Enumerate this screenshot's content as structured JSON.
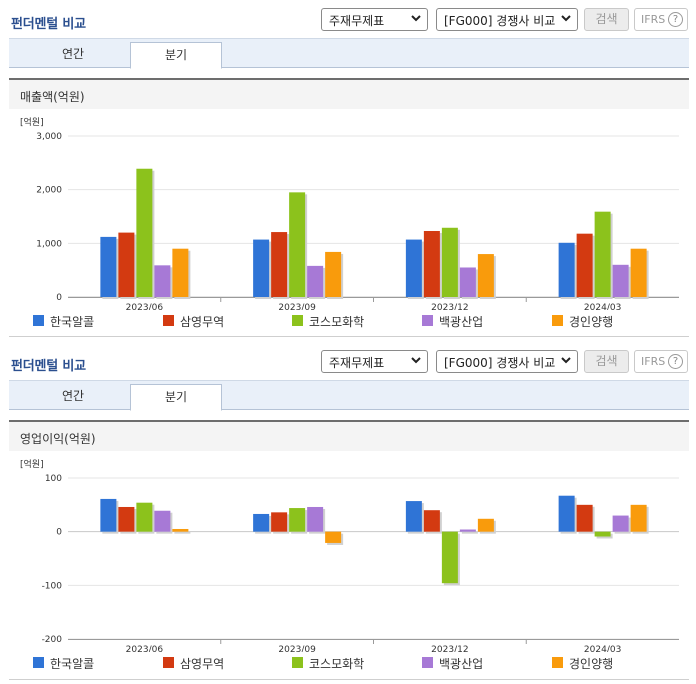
{
  "header": {
    "title": "펀더멘털 비교",
    "select_type": "주재무제표",
    "select_compare": "[FG000] 경쟁사 비교",
    "search_label": "검색",
    "ifrs_label": "IFRS",
    "help_label": "?"
  },
  "tabs": [
    {
      "label": "연간"
    },
    {
      "label": "분기"
    }
  ],
  "selected_tab": "분기",
  "colors": {
    "title": "#2b4f8f",
    "series": [
      "#2f74d6",
      "#d33a11",
      "#8cc21c",
      "#a779d6",
      "#f99b0c"
    ]
  },
  "charts": [
    {
      "metric_title": "매출액(억원)"
    },
    {
      "metric_title": "영업이익(억원)"
    }
  ],
  "chart_data": [
    {
      "type": "bar",
      "title": "매출액(억원)",
      "unit_label": "[억원]",
      "categories": [
        "2023/06",
        "2023/09",
        "2023/12",
        "2024/03"
      ],
      "ylim": [
        0,
        3000
      ],
      "yticks": [
        0,
        1000,
        2000,
        3000
      ],
      "ytick_labels": [
        "0",
        "1,000",
        "2,000",
        "3,000"
      ],
      "grid": true,
      "legend_position": "bottom",
      "series": [
        {
          "name": "한국알콜",
          "values": [
            1120,
            1070,
            1070,
            1010
          ]
        },
        {
          "name": "삼영무역",
          "values": [
            1200,
            1210,
            1230,
            1180
          ]
        },
        {
          "name": "코스모화학",
          "values": [
            2390,
            1950,
            1290,
            1590
          ]
        },
        {
          "name": "백광산업",
          "values": [
            590,
            580,
            550,
            600
          ]
        },
        {
          "name": "경인양행",
          "values": [
            900,
            840,
            800,
            900
          ]
        }
      ]
    },
    {
      "type": "bar",
      "title": "영업이익(억원)",
      "unit_label": "[억원]",
      "categories": [
        "2023/06",
        "2023/09",
        "2023/12",
        "2024/03"
      ],
      "ylim": [
        -200,
        100
      ],
      "yticks": [
        -200,
        -100,
        0,
        100
      ],
      "ytick_labels": [
        "-200",
        "-100",
        "0",
        "100"
      ],
      "grid": true,
      "legend_position": "bottom",
      "series": [
        {
          "name": "한국알콜",
          "values": [
            61,
            33,
            57,
            67
          ]
        },
        {
          "name": "삼영무역",
          "values": [
            46,
            36,
            40,
            50
          ]
        },
        {
          "name": "코스모화학",
          "values": [
            54,
            44,
            -96,
            -9
          ]
        },
        {
          "name": "백광산업",
          "values": [
            39,
            46,
            4,
            30
          ]
        },
        {
          "name": "경인양행",
          "values": [
            5,
            -21,
            24,
            50
          ]
        }
      ]
    }
  ]
}
